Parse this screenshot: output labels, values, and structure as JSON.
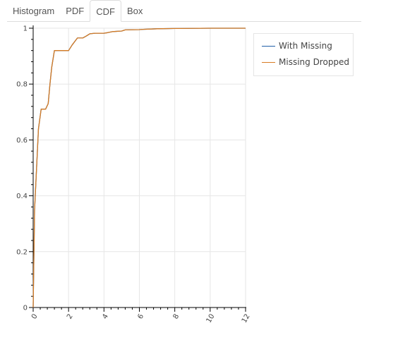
{
  "tabs": [
    {
      "label": "Histogram",
      "active": false
    },
    {
      "label": "PDF",
      "active": false
    },
    {
      "label": "CDF",
      "active": true
    },
    {
      "label": "Box",
      "active": false
    }
  ],
  "colors": {
    "with_missing": "#1f5fa8",
    "missing_dropped": "#d87c23"
  },
  "chart_data": {
    "type": "line",
    "title": "",
    "xlabel": "",
    "ylabel": "",
    "xlim": [
      0,
      12
    ],
    "ylim": [
      0,
      1
    ],
    "grid": true,
    "legend_position": "top-right (outside plot)",
    "x_ticks": [
      "0",
      "2",
      "4",
      "6",
      "8",
      "10",
      "12"
    ],
    "y_ticks": [
      "0",
      "0.2",
      "0.4",
      "0.6",
      "0.8",
      "1"
    ],
    "series": [
      {
        "name": "With Missing",
        "color": "#1f5fa8",
        "x": [
          0,
          0.08,
          0.3,
          0.45,
          0.6,
          0.7,
          0.85,
          0.95,
          1.05,
          1.2,
          1.4,
          1.8,
          2.0,
          2.2,
          2.5,
          2.8,
          3.0,
          3.2,
          3.5,
          4.0,
          4.2,
          4.5,
          5.0,
          5.2,
          6.0,
          6.2,
          7.0,
          8.0,
          10.0,
          12.0
        ],
        "y": [
          0.0,
          0.35,
          0.64,
          0.71,
          0.71,
          0.71,
          0.73,
          0.8,
          0.86,
          0.92,
          0.92,
          0.92,
          0.92,
          0.94,
          0.965,
          0.965,
          0.972,
          0.98,
          0.982,
          0.982,
          0.984,
          0.988,
          0.99,
          0.994,
          0.995,
          0.996,
          0.998,
          0.999,
          1.0,
          1.0
        ]
      },
      {
        "name": "Missing Dropped",
        "color": "#d87c23",
        "x": [
          0,
          0.08,
          0.3,
          0.45,
          0.6,
          0.7,
          0.85,
          0.95,
          1.05,
          1.2,
          1.4,
          1.8,
          2.0,
          2.2,
          2.5,
          2.8,
          3.0,
          3.2,
          3.5,
          4.0,
          4.2,
          4.5,
          5.0,
          5.2,
          6.0,
          6.2,
          7.0,
          8.0,
          10.0,
          12.0
        ],
        "y": [
          0.0,
          0.35,
          0.64,
          0.71,
          0.71,
          0.71,
          0.73,
          0.8,
          0.86,
          0.92,
          0.92,
          0.92,
          0.92,
          0.94,
          0.965,
          0.965,
          0.972,
          0.98,
          0.982,
          0.982,
          0.984,
          0.988,
          0.99,
          0.994,
          0.995,
          0.996,
          0.998,
          0.999,
          1.0,
          1.0
        ]
      }
    ]
  }
}
